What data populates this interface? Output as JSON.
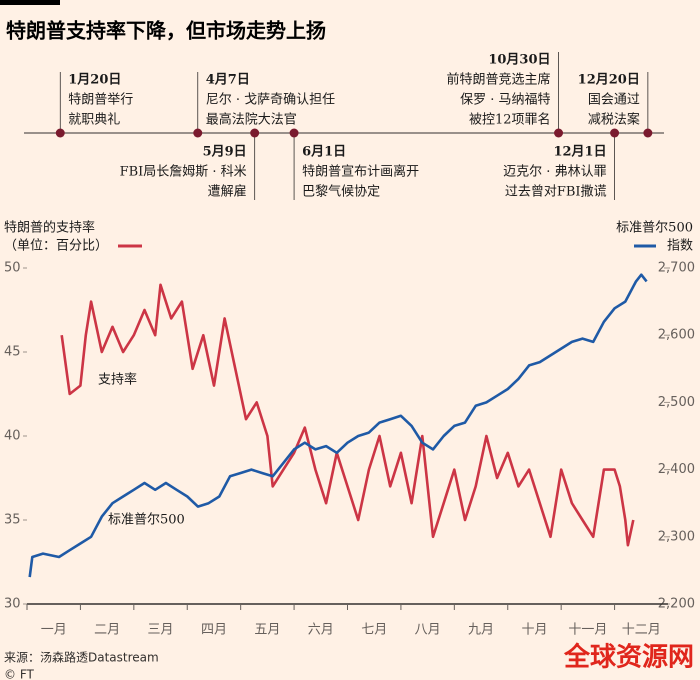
{
  "chart_data": {
    "type": "line",
    "title": "特朗普支持率下降，但市场走势上扬",
    "categories": [
      "一月",
      "二月",
      "三月",
      "四月",
      "五月",
      "六月",
      "七月",
      "八月",
      "九月",
      "十月",
      "十一月",
      "十二月"
    ],
    "xlim": [
      0,
      12
    ],
    "ylim": [
      30,
      50
    ],
    "yticks": [
      30,
      35,
      40,
      45,
      50
    ],
    "y2lim": [
      2200,
      2700
    ],
    "y2ticks": [
      {
        "value": 2200,
        "label": "2,200"
      },
      {
        "value": 2300,
        "label": "2,300"
      },
      {
        "value": 2400,
        "label": "2,400"
      },
      {
        "value": 2500,
        "label": "2,500"
      },
      {
        "value": 2600,
        "label": "2,600"
      },
      {
        "value": 2700,
        "label": "2,700"
      }
    ],
    "y_label": [
      "特朗普的支持率",
      "（单位：百分比）"
    ],
    "y2_label": [
      "标准普尔500",
      "指数"
    ],
    "series": [
      {
        "name": "支持率",
        "color": "#cc3545",
        "x": [
          0.65,
          0.8,
          1.0,
          1.1,
          1.2,
          1.4,
          1.6,
          1.8,
          2.0,
          2.2,
          2.4,
          2.5,
          2.7,
          2.9,
          3.1,
          3.3,
          3.5,
          3.7,
          3.9,
          4.1,
          4.3,
          4.5,
          4.6,
          4.8,
          5.0,
          5.2,
          5.4,
          5.6,
          5.8,
          6.0,
          6.2,
          6.4,
          6.6,
          6.8,
          7.0,
          7.2,
          7.4,
          7.6,
          7.8,
          8.0,
          8.2,
          8.4,
          8.6,
          8.8,
          9.0,
          9.2,
          9.4,
          9.6,
          9.8,
          10.0,
          10.2,
          10.4,
          10.6,
          10.8,
          11.0,
          11.1,
          11.2,
          11.25,
          11.35
        ],
        "values": [
          46,
          42.5,
          43,
          46,
          48,
          45,
          46.5,
          45,
          46,
          47.5,
          46,
          49,
          47,
          48,
          44,
          46,
          43,
          47,
          44,
          41,
          42,
          40,
          37,
          38,
          39,
          40.5,
          38,
          36,
          39,
          37,
          35,
          38,
          40,
          37,
          39,
          36,
          40,
          34,
          36,
          38,
          35,
          37,
          40,
          37.5,
          39,
          37,
          38,
          36,
          34,
          38,
          36,
          35,
          34,
          38,
          38,
          37,
          35,
          33.5,
          35
        ]
      },
      {
        "name": "标准普尔500",
        "color": "#1f5aa6",
        "axis": "y2",
        "x": [
          0.05,
          0.1,
          0.3,
          0.6,
          0.8,
          1.0,
          1.2,
          1.4,
          1.6,
          1.8,
          2.0,
          2.2,
          2.4,
          2.6,
          2.8,
          3.0,
          3.2,
          3.4,
          3.6,
          3.8,
          4.0,
          4.2,
          4.4,
          4.6,
          4.8,
          5.0,
          5.2,
          5.4,
          5.6,
          5.8,
          6.0,
          6.2,
          6.4,
          6.6,
          6.8,
          7.0,
          7.2,
          7.4,
          7.6,
          7.8,
          8.0,
          8.2,
          8.4,
          8.6,
          8.8,
          9.0,
          9.2,
          9.4,
          9.6,
          9.8,
          10.0,
          10.2,
          10.4,
          10.6,
          10.8,
          11.0,
          11.2,
          11.4,
          11.5,
          11.6
        ],
        "values": [
          2240,
          2270,
          2275,
          2270,
          2280,
          2290,
          2300,
          2330,
          2350,
          2360,
          2370,
          2380,
          2370,
          2380,
          2370,
          2360,
          2345,
          2350,
          2360,
          2390,
          2395,
          2400,
          2395,
          2390,
          2410,
          2430,
          2440,
          2430,
          2435,
          2425,
          2440,
          2450,
          2455,
          2470,
          2475,
          2480,
          2465,
          2440,
          2430,
          2450,
          2465,
          2470,
          2495,
          2500,
          2510,
          2520,
          2535,
          2555,
          2560,
          2570,
          2580,
          2590,
          2595,
          2590,
          2620,
          2640,
          2650,
          2680,
          2690,
          2680
        ]
      }
    ],
    "events": [
      {
        "date": "1月20日",
        "text": [
          "特朗普举行",
          "就职典礼"
        ]
      },
      {
        "date": "4月7日",
        "text": [
          "尼尔 · 戈萨奇确认担任",
          "最高法院大法官"
        ]
      },
      {
        "date": "5月9日",
        "text": [
          "FBI局长詹姆斯 · 科米",
          "遭解雇"
        ]
      },
      {
        "date": "6月1日",
        "text": [
          "特朗普宣布计画离开",
          "巴黎气候协定"
        ]
      },
      {
        "date": "10月30日",
        "text": [
          "前特朗普竞选主席",
          "保罗 · 马纳福特",
          "被控12项罪名"
        ]
      },
      {
        "date": "12月1日",
        "text": [
          "迈克尔 · 弗林认罪",
          "过去曾对FBI撒谎"
        ]
      },
      {
        "date": "12月20日",
        "text": [
          "国会通过",
          "减税法案"
        ]
      }
    ],
    "source": "来源：汤森路透Datastream",
    "copyright": "© FT",
    "watermark": "全球资源网"
  }
}
